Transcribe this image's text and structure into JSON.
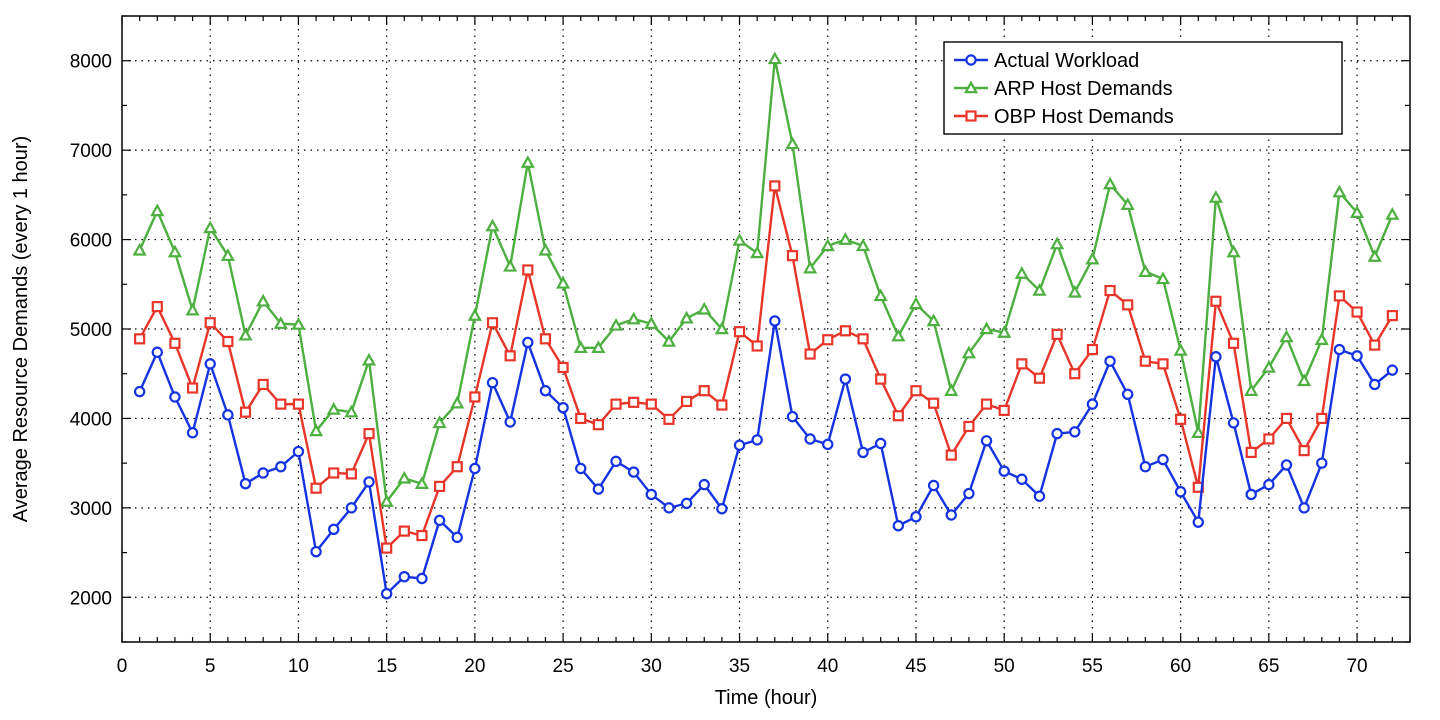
{
  "chart_data": {
    "type": "line",
    "xlabel": "Time (hour)",
    "ylabel": "Average Resource Demands (every 1 hour)",
    "xlim": [
      0,
      73
    ],
    "ylim": [
      1500,
      8500
    ],
    "xticks": [
      0,
      5,
      10,
      15,
      20,
      25,
      30,
      35,
      40,
      45,
      50,
      55,
      60,
      65,
      70
    ],
    "yticks": [
      2000,
      3000,
      4000,
      5000,
      6000,
      7000,
      8000
    ],
    "grid": true,
    "legend_position": "top-right",
    "x": [
      1,
      2,
      3,
      4,
      5,
      6,
      7,
      8,
      9,
      10,
      11,
      12,
      13,
      14,
      15,
      16,
      17,
      18,
      19,
      20,
      21,
      22,
      23,
      24,
      25,
      26,
      27,
      28,
      29,
      30,
      31,
      32,
      33,
      34,
      35,
      36,
      37,
      38,
      39,
      40,
      41,
      42,
      43,
      44,
      45,
      46,
      47,
      48,
      49,
      50,
      51,
      52,
      53,
      54,
      55,
      56,
      57,
      58,
      59,
      60,
      61,
      62,
      63,
      64,
      65,
      66,
      67,
      68,
      69,
      70,
      71,
      72
    ],
    "series": [
      {
        "name": "Actual Workload",
        "color": "#1533e0",
        "marker": "circle",
        "values": [
          4300,
          4740,
          4240,
          3840,
          4610,
          4040,
          3270,
          3390,
          3460,
          3630,
          2510,
          2760,
          3000,
          3290,
          2040,
          2230,
          2210,
          2860,
          2670,
          3440,
          4400,
          3960,
          4850,
          4310,
          4120,
          3440,
          3210,
          3520,
          3400,
          3150,
          3000,
          3050,
          3260,
          2990,
          3700,
          3760,
          5090,
          4020,
          3770,
          3710,
          4440,
          3620,
          3720,
          2800,
          2900,
          3250,
          2920,
          3160,
          3750,
          3410,
          3320,
          3130,
          3830,
          3850,
          4160,
          4640,
          4270,
          3460,
          3540,
          3180,
          2840,
          4690,
          3950,
          3150,
          3260,
          3480,
          3000,
          3500,
          4770,
          4700,
          4380,
          4540
        ]
      },
      {
        "name": "ARP Host Demands",
        "color": "#4caf3f",
        "marker": "triangle",
        "values": [
          5880,
          6320,
          5860,
          5210,
          6130,
          5820,
          4930,
          5310,
          5060,
          5050,
          3860,
          4100,
          4070,
          4650,
          3070,
          3330,
          3270,
          3950,
          4170,
          5150,
          6150,
          5700,
          6860,
          5880,
          5510,
          4790,
          4790,
          5040,
          5110,
          5060,
          4860,
          5120,
          5220,
          5000,
          5990,
          5850,
          8020,
          7070,
          5680,
          5930,
          6000,
          5930,
          5370,
          4920,
          5280,
          5090,
          4310,
          4730,
          5000,
          4960,
          5620,
          5430,
          5950,
          5410,
          5780,
          6620,
          6390,
          5640,
          5560,
          4760,
          3840,
          6470,
          5860,
          4310,
          4570,
          4910,
          4420,
          4880,
          6530,
          6300,
          5810,
          6280
        ]
      },
      {
        "name": "OBP Host Demands",
        "color": "#e8352a",
        "marker": "square",
        "values": [
          4890,
          5250,
          4840,
          4340,
          5070,
          4860,
          4070,
          4380,
          4160,
          4160,
          3220,
          3390,
          3380,
          3830,
          2550,
          2740,
          2690,
          3240,
          3460,
          4240,
          5070,
          4700,
          5660,
          4890,
          4570,
          4000,
          3930,
          4160,
          4180,
          4160,
          3990,
          4190,
          4310,
          4150,
          4970,
          4810,
          6600,
          5820,
          4720,
          4880,
          4980,
          4890,
          4440,
          4030,
          4310,
          4170,
          3590,
          3910,
          4160,
          4090,
          4610,
          4450,
          4940,
          4500,
          4770,
          5430,
          5270,
          4640,
          4610,
          3990,
          3230,
          5310,
          4840,
          3620,
          3770,
          4000,
          3640,
          4000,
          5370,
          5190,
          4820,
          5150
        ]
      }
    ]
  }
}
